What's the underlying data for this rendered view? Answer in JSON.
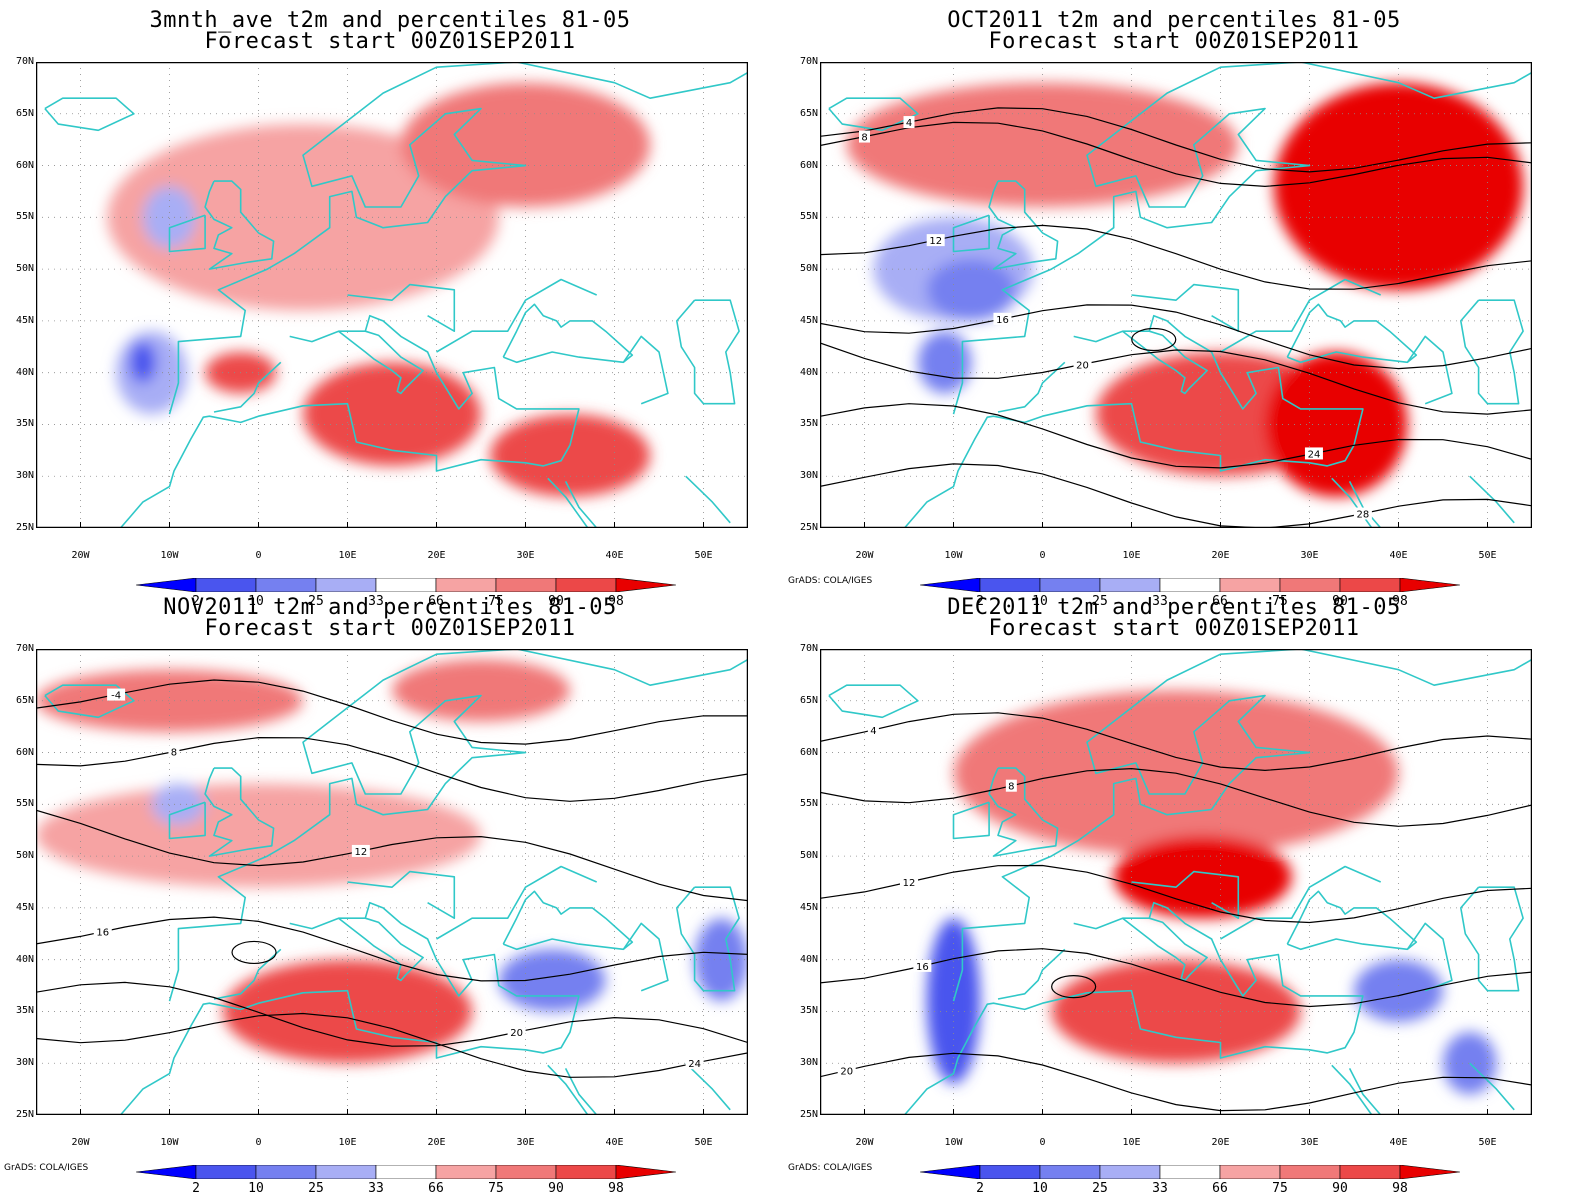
{
  "colors": {
    "p2": "#0000ff",
    "p10": "#4a55ee",
    "p25": "#7580f0",
    "p33": "#a8aef5",
    "neutral": "#ffffff",
    "p66": "#f6a3a3",
    "p75": "#f07878",
    "p90": "#ec4848",
    "p98": "#e80000",
    "coast": "#30c8c8",
    "contour": "#000000"
  },
  "colorbar": {
    "labels": [
      "2",
      "10",
      "25",
      "33",
      "66",
      "75",
      "90",
      "98"
    ]
  },
  "axes": {
    "lat_labels": [
      "70N",
      "65N",
      "60N",
      "55N",
      "50N",
      "45N",
      "40N",
      "35N",
      "30N",
      "25N"
    ],
    "lon_labels": [
      "20W",
      "10W",
      "0",
      "10E",
      "20E",
      "30E",
      "40E",
      "50E"
    ]
  },
  "credit": "GrADS: COLA/IGES",
  "panels": [
    {
      "title": "3mnth_ave t2m and percentiles 81-05",
      "subtitle": "Forecast start 00Z01SEP2011",
      "show_credit": false,
      "patches": [
        {
          "pct": "p66",
          "lon": 5,
          "lat": 55,
          "rx": 22,
          "ry": 9
        },
        {
          "pct": "p75",
          "lon": 30,
          "lat": 62,
          "rx": 14,
          "ry": 6
        },
        {
          "pct": "p90",
          "lon": 15,
          "lat": 36,
          "rx": 10,
          "ry": 5
        },
        {
          "pct": "p90",
          "lon": 35,
          "lat": 32,
          "rx": 9,
          "ry": 4
        },
        {
          "pct": "p90",
          "lon": -2,
          "lat": 40,
          "rx": 4,
          "ry": 2
        },
        {
          "pct": "p33",
          "lon": -12,
          "lat": 40,
          "rx": 4,
          "ry": 4
        },
        {
          "pct": "p10",
          "lon": -13,
          "lat": 41,
          "rx": 1.5,
          "ry": 2
        },
        {
          "pct": "p33",
          "lon": -10,
          "lat": 55,
          "rx": 3,
          "ry": 3
        }
      ],
      "contours": []
    },
    {
      "title": "OCT2011 t2m and percentiles 81-05",
      "subtitle": "Forecast start 00Z01SEP2011",
      "show_credit": true,
      "patches": [
        {
          "pct": "p75",
          "lon": 0,
          "lat": 62,
          "rx": 22,
          "ry": 6
        },
        {
          "pct": "p98",
          "lon": 40,
          "lat": 58,
          "rx": 14,
          "ry": 10
        },
        {
          "pct": "p90",
          "lon": 20,
          "lat": 36,
          "rx": 14,
          "ry": 6
        },
        {
          "pct": "p98",
          "lon": 33,
          "lat": 35,
          "rx": 8,
          "ry": 7
        },
        {
          "pct": "p33",
          "lon": -10,
          "lat": 50,
          "rx": 9,
          "ry": 5
        },
        {
          "pct": "p25",
          "lon": -8,
          "lat": 48,
          "rx": 5,
          "ry": 3
        },
        {
          "pct": "p25",
          "lon": -11,
          "lat": 41,
          "rx": 3,
          "ry": 3
        }
      ],
      "contours": [
        {
          "label": "4",
          "lon": -15,
          "lat": 64.2
        },
        {
          "label": "8",
          "lon": -20,
          "lat": 62.8
        },
        {
          "label": "12",
          "lon": -12,
          "lat": 52.8
        },
        {
          "label": "16",
          "lon": -4.5,
          "lat": 45.2
        },
        {
          "label": "20",
          "lon": 4.5,
          "lat": 40.8
        },
        {
          "label": "24",
          "lon": 30.5,
          "lat": 32.2
        },
        {
          "label": "28",
          "lon": 36,
          "lat": 26.4
        }
      ]
    },
    {
      "title": "NOV2011 t2m and percentiles 81-05",
      "subtitle": "Forecast start 00Z01SEP2011",
      "show_credit": true,
      "patches": [
        {
          "pct": "p75",
          "lon": -10,
          "lat": 65,
          "rx": 15,
          "ry": 3
        },
        {
          "pct": "p75",
          "lon": 25,
          "lat": 66,
          "rx": 10,
          "ry": 3
        },
        {
          "pct": "p90",
          "lon": 10,
          "lat": 35,
          "rx": 14,
          "ry": 5
        },
        {
          "pct": "p66",
          "lon": 0,
          "lat": 52,
          "rx": 25,
          "ry": 5
        },
        {
          "pct": "p25",
          "lon": 33,
          "lat": 38,
          "rx": 6,
          "ry": 3
        },
        {
          "pct": "p25",
          "lon": 52,
          "lat": 40,
          "rx": 3,
          "ry": 4
        },
        {
          "pct": "p33",
          "lon": -9,
          "lat": 55,
          "rx": 3,
          "ry": 2
        }
      ],
      "contours": [
        {
          "label": "-4",
          "lon": -16,
          "lat": 65.6
        },
        {
          "label": "8",
          "lon": -9.5,
          "lat": 60.1
        },
        {
          "label": "12",
          "lon": 11.5,
          "lat": 50.5
        },
        {
          "label": "16",
          "lon": -17.5,
          "lat": 42.7
        },
        {
          "label": "20",
          "lon": 29,
          "lat": 33
        },
        {
          "label": "24",
          "lon": 49,
          "lat": 30
        }
      ]
    },
    {
      "title": "DEC2011 t2m and percentiles 81-05",
      "subtitle": "Forecast start 00Z01SEP2011",
      "show_credit": true,
      "patches": [
        {
          "pct": "p75",
          "lon": 15,
          "lat": 58,
          "rx": 25,
          "ry": 8
        },
        {
          "pct": "p98",
          "lon": 18,
          "lat": 48,
          "rx": 10,
          "ry": 4
        },
        {
          "pct": "p90",
          "lon": 15,
          "lat": 35,
          "rx": 14,
          "ry": 5
        },
        {
          "pct": "p10",
          "lon": -10,
          "lat": 36,
          "rx": 3,
          "ry": 8
        },
        {
          "pct": "p25",
          "lon": 40,
          "lat": 37,
          "rx": 5,
          "ry": 3
        },
        {
          "pct": "p25",
          "lon": 48,
          "lat": 30,
          "rx": 3,
          "ry": 3
        }
      ],
      "contours": [
        {
          "label": "4",
          "lon": -19,
          "lat": 62.2
        },
        {
          "label": "8",
          "lon": -3.5,
          "lat": 56.8
        },
        {
          "label": "12",
          "lon": -15,
          "lat": 47.5
        },
        {
          "label": "16",
          "lon": -13.5,
          "lat": 39.4
        },
        {
          "label": "20",
          "lon": -22,
          "lat": 29.3
        }
      ]
    }
  ]
}
